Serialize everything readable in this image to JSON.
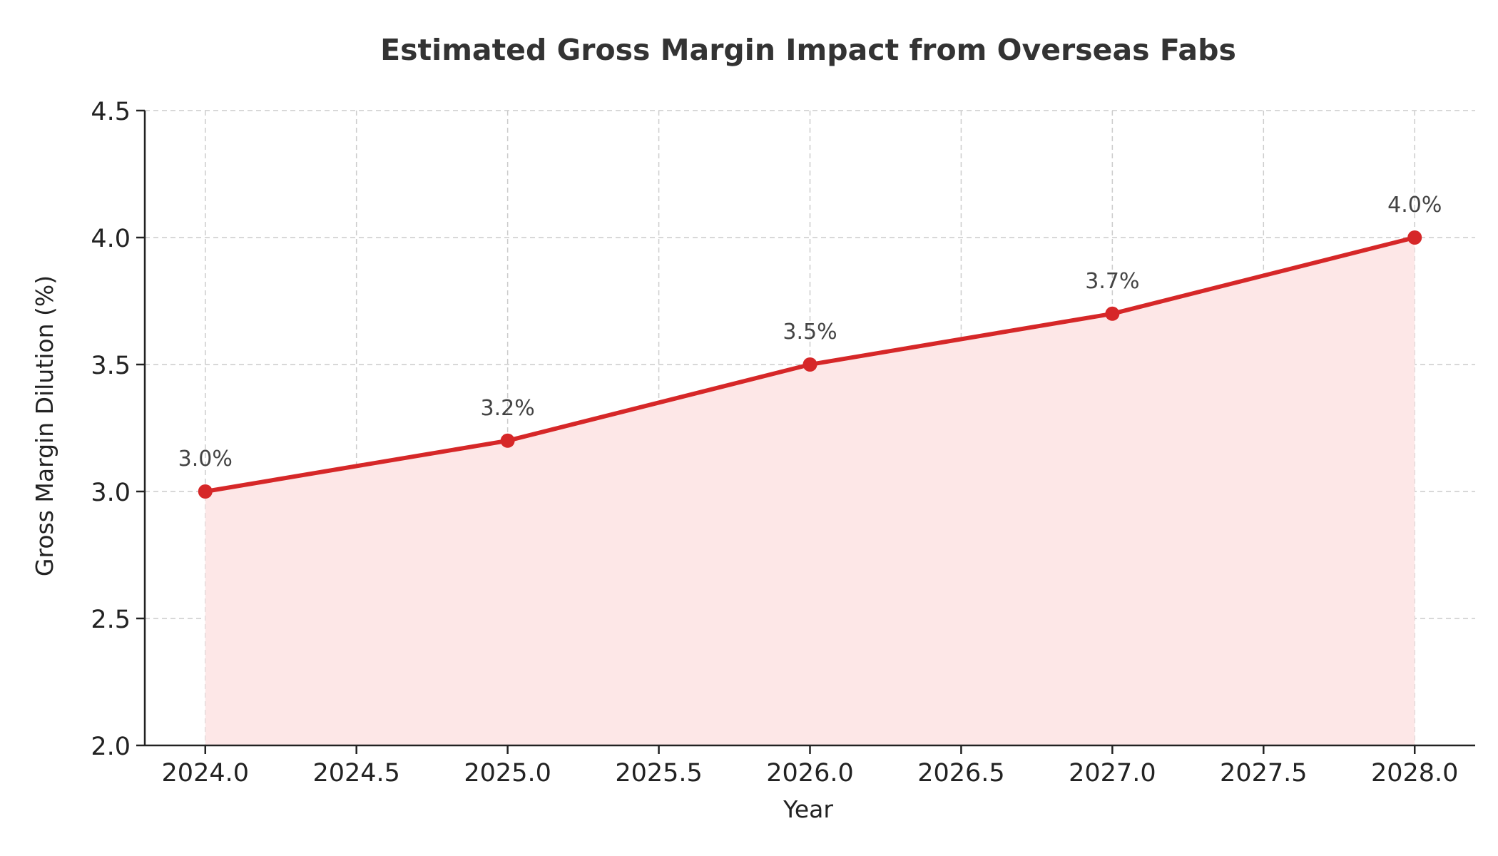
{
  "chart_data": {
    "type": "line",
    "title": "Estimated Gross Margin Impact from Overseas Fabs",
    "xlabel": "Year",
    "ylabel": "Gross Margin Dilution (%)",
    "x": [
      2024,
      2025,
      2026,
      2027,
      2028
    ],
    "series": [
      {
        "values": [
          3.0,
          3.2,
          3.5,
          3.7,
          4.0
        ]
      }
    ],
    "data_labels": [
      "3.0%",
      "3.2%",
      "3.5%",
      "3.7%",
      "4.0%"
    ],
    "xlim": [
      2023.8,
      2028.2
    ],
    "ylim": [
      2.0,
      4.5
    ],
    "x_ticks": [
      "2024.0",
      "2024.5",
      "2025.0",
      "2025.5",
      "2026.0",
      "2026.5",
      "2027.0",
      "2027.5",
      "2028.0"
    ],
    "y_ticks": [
      "2.0",
      "2.5",
      "3.0",
      "3.5",
      "4.0",
      "4.5"
    ],
    "grid": true,
    "fill_under_line": true,
    "colors": {
      "line": "#d62728",
      "fill": "#fde7e7",
      "grid": "#cccccc",
      "axis": "#222222"
    }
  }
}
